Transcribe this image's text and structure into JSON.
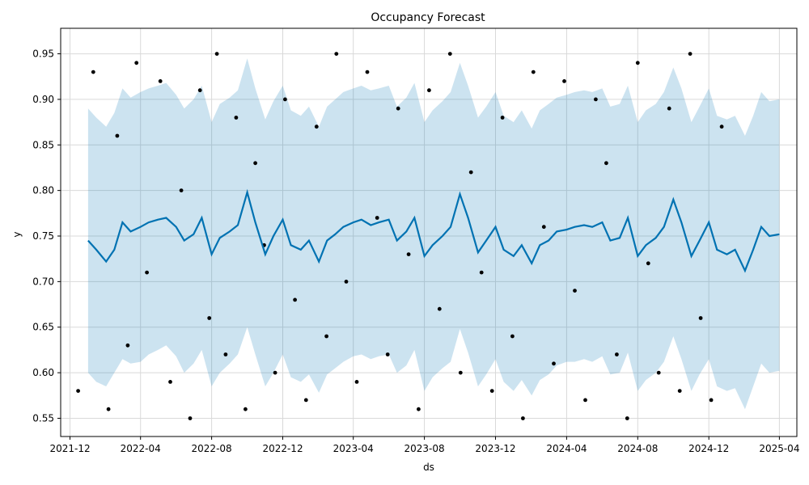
{
  "chart_data": {
    "type": "line",
    "title": "Occupancy Forecast",
    "xlabel": "ds",
    "ylabel": "y",
    "x_range": [
      "2021-11-15",
      "2025-05-01"
    ],
    "ylim": [
      0.53,
      0.978
    ],
    "x_ticks": [
      "2021-12",
      "2022-04",
      "2022-08",
      "2022-12",
      "2023-04",
      "2023-08",
      "2023-12",
      "2024-04",
      "2024-08",
      "2024-12",
      "2025-04"
    ],
    "x_tick_dates": [
      "2021-12-01",
      "2022-04-01",
      "2022-08-01",
      "2022-12-01",
      "2023-04-01",
      "2023-08-01",
      "2023-12-01",
      "2024-04-01",
      "2024-08-01",
      "2024-12-01",
      "2025-04-01"
    ],
    "y_ticks": [
      "0.55",
      "0.60",
      "0.65",
      "0.70",
      "0.75",
      "0.80",
      "0.85",
      "0.90",
      "0.95"
    ],
    "y_tick_values": [
      0.55,
      0.6,
      0.65,
      0.7,
      0.75,
      0.8,
      0.85,
      0.9,
      0.95
    ],
    "grid": true,
    "legend": "none",
    "colors": {
      "forecast": "#0072b2",
      "interval": "#0072b2",
      "observed": "#000000"
    },
    "series": [
      {
        "role": "forecast (yhat)",
        "x": [
          "2022-01-01",
          "2022-01-15",
          "2022-02-01",
          "2022-02-15",
          "2022-03-01",
          "2022-03-15",
          "2022-04-01",
          "2022-04-15",
          "2022-05-01",
          "2022-05-15",
          "2022-06-01",
          "2022-06-15",
          "2022-07-01",
          "2022-07-15",
          "2022-08-01",
          "2022-08-15",
          "2022-09-01",
          "2022-09-15",
          "2022-10-01",
          "2022-10-15",
          "2022-11-01",
          "2022-11-15",
          "2022-12-01",
          "2022-12-15",
          "2023-01-01",
          "2023-01-15",
          "2023-02-01",
          "2023-02-15",
          "2023-03-01",
          "2023-03-15",
          "2023-04-01",
          "2023-04-15",
          "2023-05-01",
          "2023-05-15",
          "2023-06-01",
          "2023-06-15",
          "2023-07-01",
          "2023-07-15",
          "2023-08-01",
          "2023-08-15",
          "2023-09-01",
          "2023-09-15",
          "2023-10-01",
          "2023-10-15",
          "2023-11-01",
          "2023-11-15",
          "2023-12-01",
          "2023-12-15",
          "2024-01-01",
          "2024-01-15",
          "2024-02-01",
          "2024-02-15",
          "2024-03-01",
          "2024-03-15",
          "2024-04-01",
          "2024-04-15",
          "2024-05-01",
          "2024-05-15",
          "2024-06-01",
          "2024-06-15",
          "2024-07-01",
          "2024-07-15",
          "2024-08-01",
          "2024-08-15",
          "2024-09-01",
          "2024-09-15",
          "2024-10-01",
          "2024-10-15",
          "2024-11-01",
          "2024-11-15",
          "2024-12-01",
          "2024-12-15",
          "2025-01-01",
          "2025-01-15",
          "2025-02-01",
          "2025-02-15",
          "2025-03-01",
          "2025-03-15",
          "2025-04-01"
        ],
        "yhat": [
          0.745,
          0.735,
          0.722,
          0.735,
          0.765,
          0.755,
          0.76,
          0.765,
          0.768,
          0.77,
          0.76,
          0.745,
          0.752,
          0.77,
          0.73,
          0.748,
          0.755,
          0.762,
          0.798,
          0.765,
          0.73,
          0.75,
          0.768,
          0.74,
          0.735,
          0.745,
          0.722,
          0.745,
          0.752,
          0.76,
          0.765,
          0.768,
          0.762,
          0.765,
          0.768,
          0.745,
          0.755,
          0.77,
          0.728,
          0.74,
          0.75,
          0.76,
          0.796,
          0.77,
          0.732,
          0.745,
          0.76,
          0.735,
          0.728,
          0.74,
          0.72,
          0.74,
          0.745,
          0.755,
          0.757,
          0.76,
          0.762,
          0.76,
          0.765,
          0.745,
          0.748,
          0.77,
          0.728,
          0.74,
          0.748,
          0.76,
          0.79,
          0.765,
          0.728,
          0.745,
          0.765,
          0.735,
          0.73,
          0.735,
          0.712,
          0.735,
          0.76,
          0.75,
          0.752
        ],
        "yhat_lower": [
          0.6,
          0.59,
          0.585,
          0.6,
          0.615,
          0.61,
          0.612,
          0.62,
          0.625,
          0.63,
          0.618,
          0.6,
          0.61,
          0.625,
          0.585,
          0.6,
          0.61,
          0.62,
          0.65,
          0.62,
          0.585,
          0.6,
          0.62,
          0.595,
          0.59,
          0.598,
          0.578,
          0.598,
          0.605,
          0.612,
          0.618,
          0.62,
          0.615,
          0.618,
          0.62,
          0.6,
          0.608,
          0.625,
          0.58,
          0.595,
          0.605,
          0.612,
          0.648,
          0.622,
          0.585,
          0.598,
          0.615,
          0.59,
          0.58,
          0.592,
          0.575,
          0.592,
          0.598,
          0.608,
          0.612,
          0.612,
          0.615,
          0.612,
          0.618,
          0.598,
          0.6,
          0.622,
          0.58,
          0.592,
          0.6,
          0.612,
          0.64,
          0.615,
          0.58,
          0.598,
          0.615,
          0.585,
          0.58,
          0.583,
          0.56,
          0.585,
          0.61,
          0.6,
          0.602
        ],
        "yhat_upper": [
          0.89,
          0.88,
          0.87,
          0.885,
          0.912,
          0.902,
          0.908,
          0.912,
          0.915,
          0.918,
          0.905,
          0.89,
          0.9,
          0.915,
          0.875,
          0.895,
          0.902,
          0.91,
          0.945,
          0.912,
          0.878,
          0.898,
          0.915,
          0.888,
          0.882,
          0.892,
          0.87,
          0.892,
          0.9,
          0.908,
          0.912,
          0.915,
          0.91,
          0.912,
          0.915,
          0.892,
          0.902,
          0.918,
          0.875,
          0.888,
          0.898,
          0.908,
          0.94,
          0.915,
          0.88,
          0.892,
          0.908,
          0.882,
          0.875,
          0.888,
          0.868,
          0.888,
          0.895,
          0.902,
          0.905,
          0.908,
          0.91,
          0.908,
          0.912,
          0.892,
          0.895,
          0.915,
          0.875,
          0.888,
          0.895,
          0.908,
          0.935,
          0.912,
          0.875,
          0.892,
          0.912,
          0.882,
          0.878,
          0.882,
          0.86,
          0.882,
          0.908,
          0.898,
          0.9
        ]
      },
      {
        "role": "observed points",
        "type": "scatter",
        "x": [
          "2021-12-15",
          "2022-01-10",
          "2022-02-05",
          "2022-02-20",
          "2022-03-10",
          "2022-03-25",
          "2022-04-12",
          "2022-05-05",
          "2022-05-22",
          "2022-06-10",
          "2022-06-25",
          "2022-07-12",
          "2022-07-28",
          "2022-08-10",
          "2022-08-25",
          "2022-09-12",
          "2022-09-28",
          "2022-10-15",
          "2022-10-30",
          "2022-11-18",
          "2022-12-05",
          "2022-12-22",
          "2023-01-10",
          "2023-01-28",
          "2023-02-14",
          "2023-03-03",
          "2023-03-20",
          "2023-04-07",
          "2023-04-25",
          "2023-05-12",
          "2023-05-30",
          "2023-06-17",
          "2023-07-05",
          "2023-07-22",
          "2023-08-09",
          "2023-08-27",
          "2023-09-14",
          "2023-10-02",
          "2023-10-20",
          "2023-11-07",
          "2023-11-25",
          "2023-12-13",
          "2023-12-30",
          "2024-01-17",
          "2024-02-04",
          "2024-02-22",
          "2024-03-10",
          "2024-03-28",
          "2024-04-15",
          "2024-05-03",
          "2024-05-21",
          "2024-06-08",
          "2024-06-26",
          "2024-07-14",
          "2024-08-01",
          "2024-08-19",
          "2024-09-06",
          "2024-09-24",
          "2024-10-12",
          "2024-10-30",
          "2024-11-17",
          "2024-12-05",
          "2024-12-23"
        ],
        "y": [
          0.58,
          0.93,
          0.56,
          0.86,
          0.63,
          0.94,
          0.71,
          0.92,
          0.59,
          0.8,
          0.55,
          0.91,
          0.66,
          0.95,
          0.62,
          0.88,
          0.56,
          0.83,
          0.74,
          0.6,
          0.9,
          0.68,
          0.57,
          0.87,
          0.64,
          0.95,
          0.7,
          0.59,
          0.93,
          0.77,
          0.62,
          0.89,
          0.73,
          0.56,
          0.91,
          0.67,
          0.95,
          0.6,
          0.82,
          0.71,
          0.58,
          0.88,
          0.64,
          0.55,
          0.93,
          0.76,
          0.61,
          0.92,
          0.69,
          0.57,
          0.9,
          0.83,
          0.62,
          0.55,
          0.94,
          0.72,
          0.6,
          0.89,
          0.58,
          0.95,
          0.66,
          0.57,
          0.87
        ]
      }
    ]
  }
}
